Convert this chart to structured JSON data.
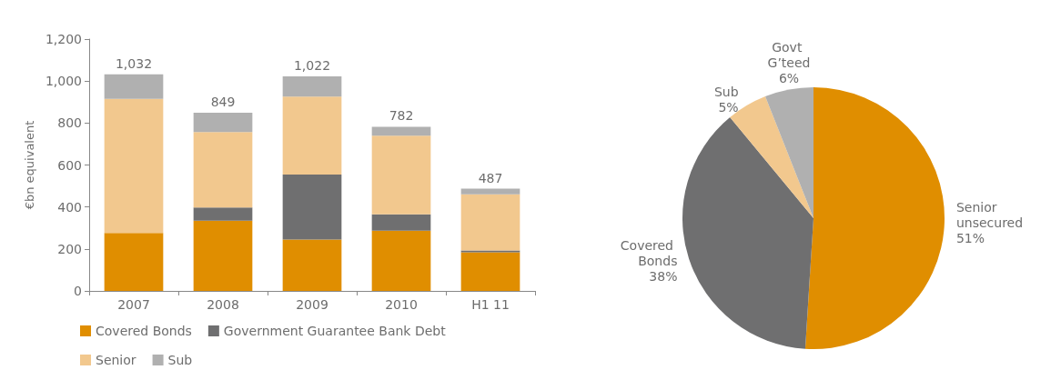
{
  "chart_data": [
    {
      "type": "bar",
      "stacked": true,
      "ylabel": "€bn equivalent",
      "categories": [
        "2007",
        "2008",
        "2009",
        "2010",
        "H1 11"
      ],
      "ylim": [
        0,
        1200
      ],
      "yticks": [
        {
          "value": 0,
          "label": "0"
        },
        {
          "value": 200,
          "label": "200"
        },
        {
          "value": 400,
          "label": "400"
        },
        {
          "value": 600,
          "label": "600"
        },
        {
          "value": 800,
          "label": "800"
        },
        {
          "value": 1000,
          "label": "1,000"
        },
        {
          "value": 1200,
          "label": "1,200"
        }
      ],
      "grid": false,
      "legend": "bottom",
      "series": [
        {
          "name": "Covered Bonds",
          "color": "#e08e00",
          "values": [
            276,
            335,
            245,
            287,
            184
          ]
        },
        {
          "name": "Government Guarantee Bank Debt",
          "color": "#6f6f70",
          "values": [
            0,
            63,
            309,
            78,
            9
          ]
        },
        {
          "name": "Senior",
          "color": "#f2c88e",
          "values": [
            639,
            359,
            372,
            375,
            267
          ]
        },
        {
          "name": "Sub",
          "color": "#b0b0b0",
          "values": [
            117,
            92,
            96,
            42,
            27
          ]
        }
      ],
      "totals": [
        "1,032",
        "849",
        "1,022",
        "782",
        "487"
      ]
    },
    {
      "type": "pie",
      "categories": [
        "Senior unsecured",
        "Covered Bonds",
        "Sub",
        "Govt G’teed"
      ],
      "values": [
        51,
        38,
        5,
        6
      ],
      "colors": [
        "#e08e00",
        "#6f6f70",
        "#f2c88e",
        "#b0b0b0"
      ],
      "value_labels": [
        "51%",
        "38%",
        "5%",
        "6%"
      ]
    }
  ]
}
